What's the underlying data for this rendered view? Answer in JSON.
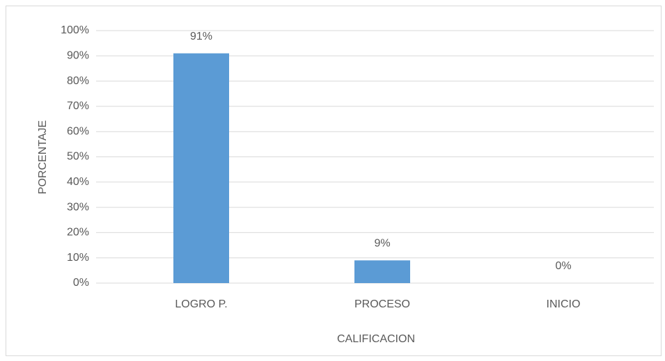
{
  "chart_data": {
    "type": "bar",
    "xlabel": "CALIFICACION",
    "ylabel": "PORCENTAJE",
    "categories": [
      "LOGRO P.",
      "PROCESO",
      "INICIO"
    ],
    "values": [
      91,
      9,
      0
    ],
    "value_labels": [
      "91%",
      "9%",
      "0%"
    ],
    "color": "#5b9bd5",
    "ylim": [
      0,
      100
    ],
    "yticks": [
      {
        "value": 0,
        "label": "0%"
      },
      {
        "value": 10,
        "label": "10%"
      },
      {
        "value": 20,
        "label": "20%"
      },
      {
        "value": 30,
        "label": "30%"
      },
      {
        "value": 40,
        "label": "40%"
      },
      {
        "value": 50,
        "label": "50%"
      },
      {
        "value": 60,
        "label": "60%"
      },
      {
        "value": 70,
        "label": "70%"
      },
      {
        "value": 80,
        "label": "80%"
      },
      {
        "value": 90,
        "label": "90%"
      },
      {
        "value": 100,
        "label": "100%"
      }
    ],
    "grid": true
  }
}
